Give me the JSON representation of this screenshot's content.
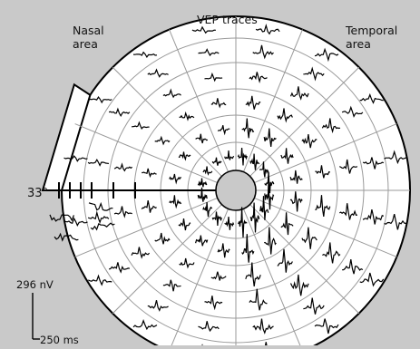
{
  "title": "VEP traces",
  "nasal_label": [
    "Nasal",
    "area"
  ],
  "temporal_label": [
    "Temporal",
    "area"
  ],
  "eccentricity_label": "33°",
  "scale_bar": {
    "amplitude_label": "296 nV",
    "time_label": "250 ms"
  },
  "colors": {
    "background": "#c9c9c9",
    "field": "#ffffff",
    "grid": "#9a9a9a",
    "trace": "#000000"
  }
}
